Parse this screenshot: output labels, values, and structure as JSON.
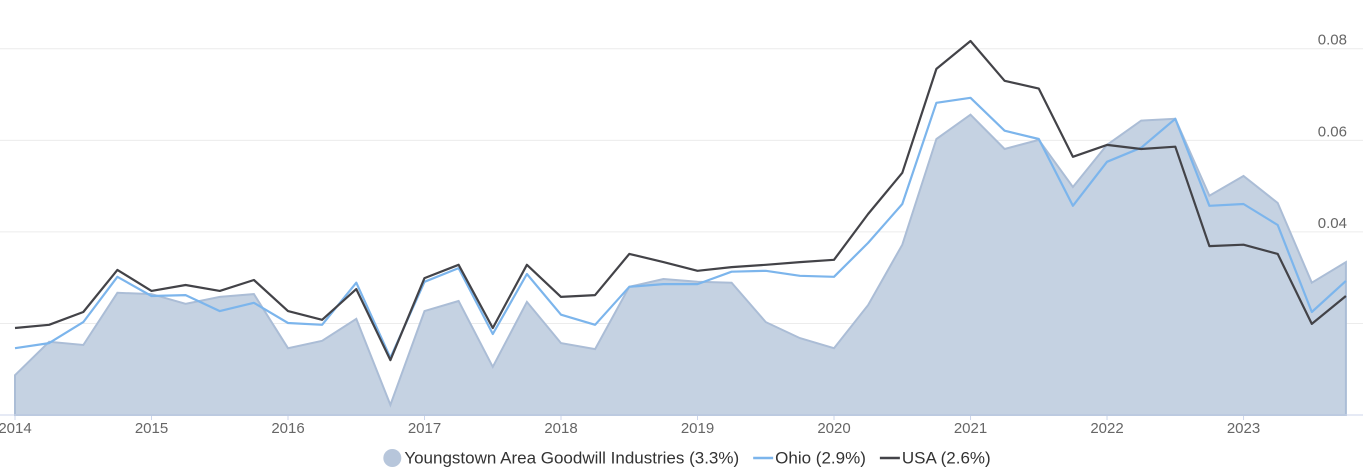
{
  "chart_data": {
    "type": "line",
    "x": [
      2014,
      2014.25,
      2014.5,
      2014.75,
      2015,
      2015.25,
      2015.5,
      2015.75,
      2016,
      2016.25,
      2016.5,
      2016.75,
      2017,
      2017.25,
      2017.5,
      2017.75,
      2018,
      2018.25,
      2018.5,
      2018.75,
      2019,
      2019.25,
      2019.5,
      2019.75,
      2020,
      2020.25,
      2020.5,
      2020.75,
      2021,
      2021.25,
      2021.5,
      2021.75,
      2022,
      2022.25,
      2022.5,
      2022.75,
      2023,
      2023.25,
      2023.5,
      2023.75
    ],
    "series": [
      {
        "name": "Youngstown Area Goodwill Industries (3.3%)",
        "color": "#c5d2e2",
        "area": true,
        "values": [
          0.0087,
          0.016,
          0.0153,
          0.0267,
          0.0264,
          0.0243,
          0.0258,
          0.0264,
          0.0146,
          0.0162,
          0.021,
          0.0022,
          0.0227,
          0.0249,
          0.0105,
          0.0247,
          0.0157,
          0.0144,
          0.028,
          0.0297,
          0.0291,
          0.0289,
          0.0203,
          0.0168,
          0.0146,
          0.024,
          0.0372,
          0.0603,
          0.0656,
          0.0581,
          0.0601,
          0.0498,
          0.059,
          0.0643,
          0.0647,
          0.0479,
          0.0522,
          0.0463,
          0.0289,
          0.0334
        ]
      },
      {
        "name": "Ohio (2.9%)",
        "color": "#7cb5ec",
        "values": [
          0.0146,
          0.0157,
          0.0203,
          0.0302,
          0.026,
          0.0262,
          0.0227,
          0.0245,
          0.0201,
          0.0197,
          0.0289,
          0.0125,
          0.0291,
          0.0321,
          0.0177,
          0.0308,
          0.0219,
          0.0197,
          0.028,
          0.0286,
          0.0286,
          0.0313,
          0.0315,
          0.0304,
          0.0302,
          0.0376,
          0.0461,
          0.0682,
          0.0693,
          0.0621,
          0.0603,
          0.0457,
          0.0553,
          0.0584,
          0.0647,
          0.0457,
          0.0461,
          0.0415,
          0.0225,
          0.0293
        ]
      },
      {
        "name": "USA (2.6%)",
        "color": "#434348",
        "values": [
          0.019,
          0.0197,
          0.0225,
          0.0317,
          0.0271,
          0.0284,
          0.0271,
          0.0295,
          0.0227,
          0.0208,
          0.0275,
          0.012,
          0.0299,
          0.0328,
          0.019,
          0.0328,
          0.0258,
          0.0262,
          0.0352,
          0.0334,
          0.0315,
          0.0323,
          0.0328,
          0.0334,
          0.0339,
          0.0439,
          0.0529,
          0.0756,
          0.0817,
          0.073,
          0.0713,
          0.0564,
          0.059,
          0.0581,
          0.0586,
          0.0369,
          0.0372,
          0.0352,
          0.0199,
          0.026
        ]
      }
    ],
    "xlim": [
      2014,
      2023.78
    ],
    "xticks": [
      2014,
      2015,
      2016,
      2017,
      2018,
      2019,
      2020,
      2021,
      2022,
      2023
    ],
    "ylim": [
      0,
      0.09
    ],
    "yticks": [
      0,
      0.02,
      0.04,
      0.06,
      0.08
    ],
    "grid": true,
    "legend": "bottom"
  }
}
